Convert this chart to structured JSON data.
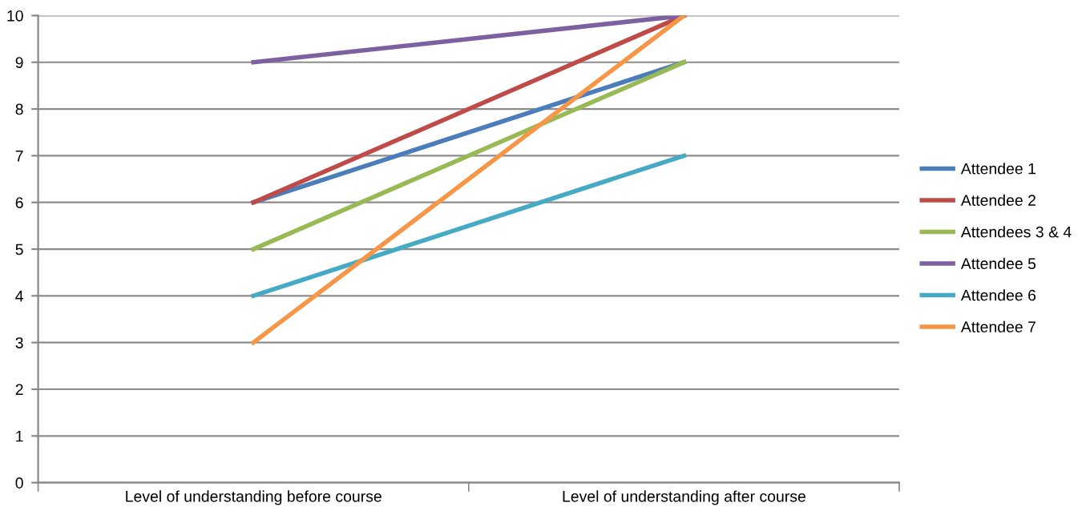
{
  "chart_data": {
    "type": "line",
    "categories": [
      "Level of understanding before course",
      "Level of understanding after course"
    ],
    "series": [
      {
        "name": "Attendee 1",
        "color": "#4a7ebb",
        "values": [
          6,
          9
        ]
      },
      {
        "name": "Attendee 2",
        "color": "#be4b48",
        "values": [
          6,
          10
        ]
      },
      {
        "name": "Attendees 3 & 4",
        "color": "#98b954",
        "values": [
          5,
          9
        ]
      },
      {
        "name": "Attendee 5",
        "color": "#7d60a0",
        "values": [
          9,
          10
        ]
      },
      {
        "name": "Attendee 6",
        "color": "#46aac5",
        "values": [
          4,
          7
        ]
      },
      {
        "name": "Attendee 7",
        "color": "#f79646",
        "values": [
          3,
          10
        ]
      }
    ],
    "ylim": [
      0,
      10
    ],
    "yticks": [
      0,
      1,
      2,
      3,
      4,
      5,
      6,
      7,
      8,
      9,
      10
    ],
    "grid": "y",
    "legend": "right",
    "marker": "none",
    "line_style": "solid"
  }
}
